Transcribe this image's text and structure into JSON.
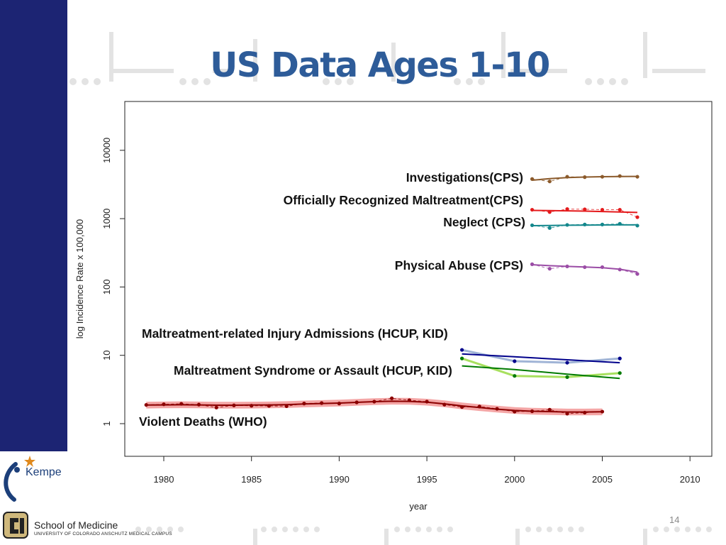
{
  "slide": {
    "title": "US Data Ages 1-10",
    "page_number": "14"
  },
  "logos": {
    "kempe": "Kempe",
    "school": "School of Medicine",
    "school_sub": "UNIVERSITY OF COLORADO ANSCHUTZ MEDICAL CAMPUS"
  },
  "colors": {
    "sidebar": "#1c2473",
    "title": "#2e5c99"
  },
  "chart_data": {
    "type": "line",
    "title": "",
    "xlabel": "year",
    "ylabel": "log Incidence Rate x 100,000",
    "x_scale": "linear",
    "y_scale": "log",
    "xlim": [
      1977.5,
      2011.5
    ],
    "ylim": [
      0.48,
      70000
    ],
    "x_ticks": [
      1980,
      1985,
      1990,
      1995,
      2000,
      2005,
      2010
    ],
    "y_ticks": [
      1,
      10,
      100,
      1000,
      10000
    ],
    "y_tick_labels": [
      "1",
      "10",
      "100",
      "1000",
      "10000"
    ],
    "grid": false,
    "legend": "none (direct labels)",
    "series": [
      {
        "name": "Investigations(CPS)",
        "color": "#8b5a2b",
        "x": [
          2001,
          2002,
          2003,
          2004,
          2005,
          2006,
          2007
        ],
        "y": [
          3800,
          3500,
          4100,
          4050,
          4100,
          4200,
          4100
        ],
        "trend": [
          3650,
          3850,
          3980,
          4060,
          4110,
          4140,
          4150
        ]
      },
      {
        "name": "Officially Recognized Maltreatment(CPS)",
        "color": "#e41a1c",
        "x": [
          2001,
          2002,
          2003,
          2004,
          2005,
          2006,
          2007
        ],
        "y": [
          1350,
          1250,
          1380,
          1370,
          1350,
          1350,
          1050
        ],
        "trend": [
          1320,
          1310,
          1300,
          1290,
          1270,
          1250,
          1230
        ]
      },
      {
        "name": "Neglect (CPS)",
        "color": "#13878c",
        "x": [
          2001,
          2002,
          2003,
          2004,
          2005,
          2006,
          2007
        ],
        "y": [
          800,
          730,
          810,
          820,
          820,
          840,
          790
        ],
        "trend": [
          790,
          795,
          800,
          805,
          808,
          810,
          812
        ]
      },
      {
        "name": "Physical Abuse (CPS)",
        "color": "#9b4da6",
        "x": [
          2001,
          2002,
          2003,
          2004,
          2005,
          2006,
          2007
        ],
        "y": [
          215,
          185,
          200,
          195,
          195,
          180,
          155
        ],
        "trend": [
          212,
          205,
          200,
          196,
          191,
          182,
          165
        ]
      },
      {
        "name": "Maltreatment-related Injury Admissions (HCUP, KID)",
        "color": "#00008b",
        "trend_color": "#00008b",
        "data_color": "#a0b4d6",
        "x": [
          1997,
          2000,
          2003,
          2006
        ],
        "y": [
          12,
          8.2,
          7.8,
          9
        ],
        "trend": [
          10.5,
          9.5,
          8.6,
          7.8
        ]
      },
      {
        "name": "Maltreatment Syndrome or Assault (HCUP, KID)",
        "color": "#007a00",
        "trend_color": "#007a00",
        "data_color": "#a8e05f",
        "x": [
          1997,
          2000,
          2003,
          2006
        ],
        "y": [
          9,
          5,
          4.8,
          5.5
        ],
        "trend": [
          7,
          6.2,
          5.3,
          4.6
        ]
      },
      {
        "name": "Violent Deaths (WHO)",
        "color": "#8b0000",
        "band_color": "#f08080",
        "x": [
          1979,
          1980,
          1981,
          1982,
          1983,
          1984,
          1985,
          1986,
          1987,
          1988,
          1989,
          1990,
          1991,
          1992,
          1993,
          1994,
          1995,
          1996,
          1997,
          1998,
          1999,
          2000,
          2001,
          2002,
          2003,
          2004,
          2005
        ],
        "y": [
          1.88,
          1.92,
          1.95,
          1.9,
          1.72,
          1.85,
          1.83,
          1.82,
          1.8,
          1.97,
          2.0,
          1.97,
          2.05,
          2.1,
          2.35,
          2.2,
          2.1,
          1.9,
          1.75,
          1.78,
          1.65,
          1.5,
          1.52,
          1.6,
          1.4,
          1.45,
          1.5
        ],
        "trend": [
          1.87,
          1.88,
          1.89,
          1.88,
          1.86,
          1.86,
          1.87,
          1.88,
          1.9,
          1.94,
          1.97,
          2.0,
          2.05,
          2.1,
          2.13,
          2.12,
          2.06,
          1.95,
          1.82,
          1.72,
          1.63,
          1.56,
          1.52,
          1.5,
          1.48,
          1.48,
          1.49
        ]
      }
    ]
  }
}
